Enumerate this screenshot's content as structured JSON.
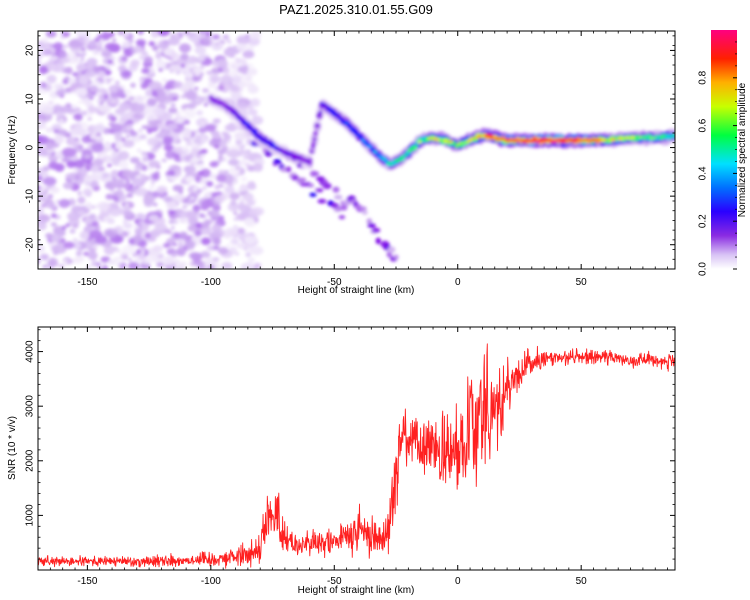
{
  "title": "PAZ1.2025.310.01.55.G09",
  "chart_data": [
    {
      "type": "heatmap",
      "name": "spectrogram",
      "xlabel": "Height of straight line (km)",
      "ylabel": "Frequency (Hz)",
      "xlim": [
        -170,
        88
      ],
      "ylim": [
        -25,
        24
      ],
      "xticks": [
        -150,
        -100,
        -50,
        0,
        50
      ],
      "xtick_labels": [
        "-150",
        "-100",
        "-50",
        "0",
        "50"
      ],
      "yticks": [
        -20,
        -10,
        0,
        10,
        20
      ],
      "ytick_labels": [
        "-20",
        "-10",
        "0",
        "10",
        "20"
      ],
      "colorbar": {
        "label": "Normalized spectral amplitude",
        "range": [
          0,
          1
        ],
        "ticks": [
          0.0,
          0.2,
          0.4,
          0.6,
          0.8
        ],
        "tick_labels": [
          "0.0",
          "0.2",
          "0.4",
          "0.6",
          "0.8"
        ],
        "colormap": [
          "#ffffff",
          "#c9a6f0",
          "#7a00e6",
          "#0000ff",
          "#00c8ff",
          "#00ff60",
          "#f0ff00",
          "#ff8000",
          "#ff0000",
          "#ff0080"
        ]
      },
      "main_track": {
        "x": [
          -100,
          -95,
          -90,
          -85,
          -80,
          -75,
          -70,
          -65,
          -60,
          -55,
          -50,
          -45,
          -40,
          -35,
          -30,
          -27,
          -25,
          -20,
          -15,
          -10,
          -5,
          0,
          5,
          10,
          12,
          15,
          20,
          30,
          40,
          50,
          60,
          70,
          80,
          88
        ],
        "freq": [
          10,
          9,
          7,
          4.5,
          2,
          0.5,
          -1,
          -2,
          -3,
          9,
          7,
          5,
          2.5,
          0,
          -2.5,
          -3.5,
          -3,
          -1,
          1.5,
          2,
          1.5,
          0.5,
          1.5,
          2.5,
          2.5,
          2,
          1.5,
          1.5,
          1.5,
          1.5,
          1.5,
          2,
          2,
          2.5
        ],
        "amplitude": [
          0.2,
          0.2,
          0.25,
          0.3,
          0.3,
          0.3,
          0.25,
          0.25,
          0.2,
          0.25,
          0.3,
          0.35,
          0.35,
          0.4,
          0.45,
          0.5,
          0.5,
          0.55,
          0.6,
          0.65,
          0.7,
          0.6,
          0.65,
          0.75,
          0.8,
          0.8,
          0.85,
          0.9,
          0.9,
          0.85,
          0.7,
          0.6,
          0.55,
          0.5
        ]
      },
      "secondary_tracks": [
        {
          "x": [
            -82,
            -75,
            -68,
            -60,
            -52,
            -45
          ],
          "freq": [
            2,
            -2,
            -5,
            -8,
            -11,
            -14
          ],
          "amplitude": 0.2
        },
        {
          "x": [
            -70,
            -60,
            -50,
            -40,
            -35,
            -30,
            -25
          ],
          "freq": [
            -1,
            -5,
            -9,
            -12,
            -16,
            -20,
            -23
          ],
          "amplitude": 0.15
        }
      ],
      "noise_region": {
        "x_range": [
          -170,
          -80
        ],
        "freq_range": [
          -25,
          24
        ],
        "amplitude": 0.12
      }
    },
    {
      "type": "line",
      "name": "snr",
      "xlabel": "Height of straight line (km)",
      "ylabel": "SNR (10 * v/v)",
      "xlim": [
        -170,
        88
      ],
      "ylim": [
        0,
        4450
      ],
      "xticks": [
        -150,
        -100,
        -50,
        0,
        50
      ],
      "xtick_labels": [
        "-150",
        "-100",
        "-50",
        "0",
        "50"
      ],
      "yticks": [
        1000,
        2000,
        3000,
        4000
      ],
      "ytick_labels": [
        "1000",
        "2000",
        "3000",
        "4000"
      ],
      "color": "#ff2020",
      "series": [
        {
          "name": "SNR",
          "x": [
            -170,
            -160,
            -150,
            -140,
            -130,
            -120,
            -110,
            -100,
            -90,
            -85,
            -80,
            -77,
            -75,
            -73,
            -70,
            -65,
            -60,
            -55,
            -50,
            -45,
            -40,
            -35,
            -30,
            -27,
            -25,
            -22,
            -20,
            -15,
            -10,
            -5,
            0,
            3,
            5,
            8,
            10,
            12,
            15,
            18,
            20,
            25,
            30,
            35,
            40,
            50,
            60,
            70,
            80,
            88
          ],
          "y": [
            150,
            150,
            160,
            160,
            160,
            170,
            180,
            200,
            250,
            300,
            400,
            1100,
            900,
            1000,
            600,
            450,
            500,
            450,
            550,
            600,
            700,
            650,
            550,
            1100,
            1900,
            2500,
            2400,
            2200,
            2300,
            2000,
            2200,
            2500,
            3200,
            2500,
            3100,
            3300,
            2800,
            3100,
            3300,
            3600,
            3800,
            3850,
            3900,
            3900,
            3900,
            3850,
            3850,
            3800
          ],
          "spread": [
            80,
            80,
            80,
            80,
            90,
            100,
            110,
            120,
            150,
            200,
            250,
            500,
            450,
            450,
            250,
            200,
            200,
            200,
            250,
            300,
            350,
            350,
            250,
            500,
            600,
            500,
            450,
            450,
            500,
            600,
            700,
            900,
            1000,
            1200,
            1400,
            1100,
            900,
            700,
            500,
            300,
            200,
            150,
            130,
            120,
            120,
            120,
            120,
            120
          ]
        }
      ]
    }
  ]
}
